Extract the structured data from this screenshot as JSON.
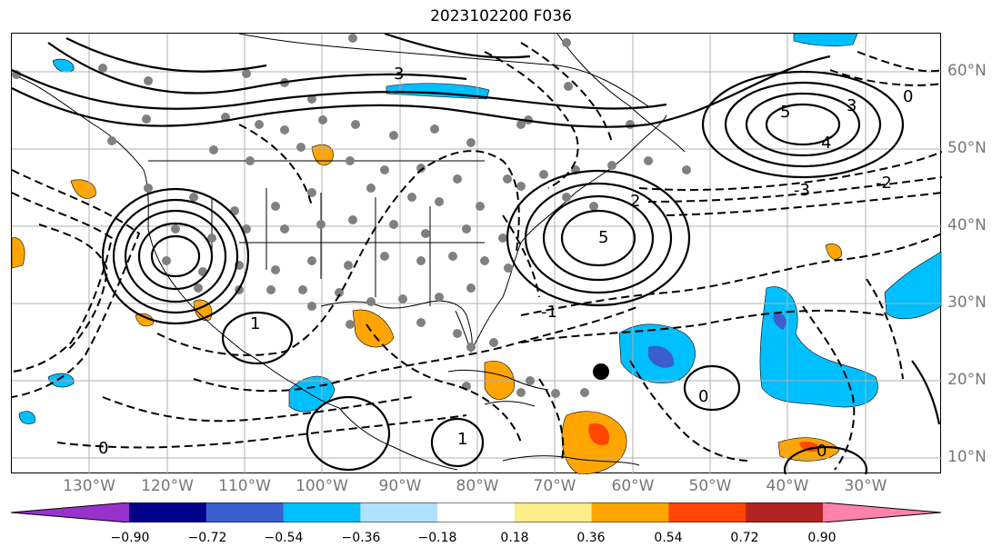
{
  "title": "2023102200 F036",
  "lat_labels": [
    "60°N",
    "50°N",
    "40°N",
    "30°N",
    "20°N",
    "10°N"
  ],
  "lon_labels": [
    "130°W",
    "120°W",
    "110°W",
    "100°W",
    "90°W",
    "80°W",
    "70°W",
    "60°W",
    "50°W",
    "40°W",
    "30°W"
  ],
  "colorbar": {
    "ticks": [
      "−0.90",
      "−0.72",
      "−0.54",
      "−0.36",
      "−0.18",
      "0.18",
      "0.36",
      "0.54",
      "0.72",
      "0.90"
    ],
    "colors": [
      "#9932cc",
      "#00008b",
      "#3a5fcd",
      "#00bfff",
      "#b0e2ff",
      "#ffffff",
      "#ffec8b",
      "#ffa500",
      "#ff4500",
      "#b22222",
      "#ff82ab"
    ]
  },
  "contour_labels": {
    "pos_5_atlantic": "5",
    "pos_5_east": "5",
    "pos_4": "4",
    "pos_3": "3",
    "pos_2": "2",
    "neg_3": "-3",
    "neg_2": "-2",
    "neg_1": "-1",
    "zero": "0",
    "one": "1"
  },
  "colors": {
    "blue_field": "#00bfff",
    "orange_field": "#ffa500",
    "red_field": "#ff4500",
    "dot": "#808080",
    "grid": "#b0b0b0"
  }
}
